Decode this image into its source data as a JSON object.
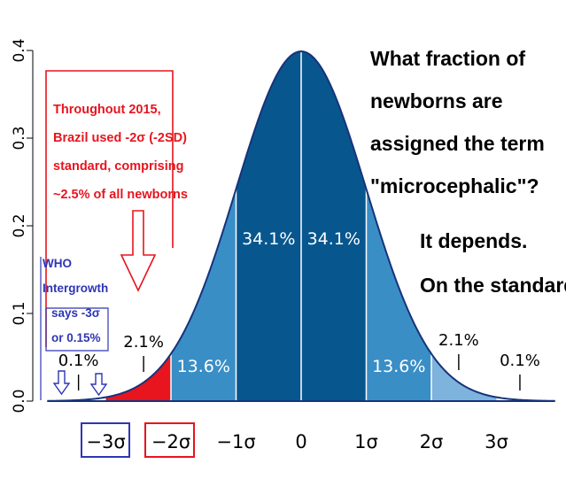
{
  "chart_data": {
    "type": "area",
    "title": "",
    "xlabel": "",
    "ylabel": "",
    "xlim": [
      -3.9,
      3.9
    ],
    "ylim": [
      0,
      0.4
    ],
    "yticks": [
      0.0,
      0.1,
      0.2,
      0.3,
      0.4
    ],
    "ytick_labels": [
      "0.0",
      "0.1",
      "0.2",
      "0.3",
      "0.4"
    ],
    "xticks": [
      -3,
      -2,
      -1,
      0,
      1,
      2,
      3
    ],
    "xtick_labels": [
      "−3σ",
      "−2σ",
      "−1σ",
      "0",
      "1σ",
      "2σ",
      "3σ"
    ],
    "series": [
      {
        "distribution": "standard normal",
        "mean": 0,
        "sd": 1
      }
    ],
    "regions": [
      {
        "from": -3.9,
        "to": -3,
        "color": "#ffffff",
        "label": "0.1%",
        "value": 0.1
      },
      {
        "from": -3,
        "to": -2,
        "color": "#e8141e",
        "label": "2.1%",
        "value": 2.1
      },
      {
        "from": -2,
        "to": -1,
        "color": "#3a8ec6",
        "label": "13.6%",
        "value": 13.6
      },
      {
        "from": -1,
        "to": 0,
        "color": "#08568e",
        "label": "34.1%",
        "value": 34.1
      },
      {
        "from": 0,
        "to": 1,
        "color": "#08568e",
        "label": "34.1%",
        "value": 34.1
      },
      {
        "from": 1,
        "to": 2,
        "color": "#3a8ec6",
        "label": "13.6%",
        "value": 13.6
      },
      {
        "from": 2,
        "to": 3,
        "color": "#7db3dc",
        "label": "2.1%",
        "value": 2.1
      },
      {
        "from": 3,
        "to": 3.9,
        "color": "#ffffff",
        "label": "0.1%",
        "value": 0.1
      }
    ],
    "colors": {
      "curve": "#16337a",
      "red_box": "#e8141e",
      "blue_box": "#2e35b5",
      "question_text": "#000000"
    }
  },
  "annotations": {
    "question": [
      "What fraction of",
      "newborns are",
      "assigned the term",
      "\"microcephalic\"?"
    ],
    "answer": [
      "It depends.",
      "On the standard"
    ],
    "brazil_note": [
      "Throughout 2015,",
      "Brazil used -2σ (-2SD)",
      "standard, comprising",
      "~2.5% of all newborns"
    ],
    "who_note": [
      "WHO",
      "Intergrowth",
      "says -3σ",
      "or 0.15%"
    ]
  }
}
